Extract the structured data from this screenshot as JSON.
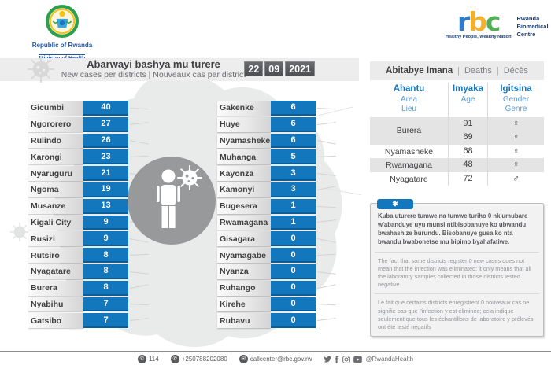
{
  "gov": {
    "country": "Republic of Rwanda",
    "ministry": "Ministry of Health"
  },
  "logo_rbc": {
    "r": "r",
    "b": "b",
    "c": "c",
    "name1": "Rwanda",
    "name2": "Biomedical",
    "name3": "Centre",
    "tagline": "Healthy People, Wealthy Nation"
  },
  "title_bar": {
    "title": "Abarwayi bashya mu turere",
    "subtitle": "New cases per districts  |  Nouveaux cas par district",
    "date_day": "22",
    "date_month": "09",
    "date_year": "2021"
  },
  "chart_data": {
    "type": "table",
    "title": "Abarwayi bashya mu turere — New cases per districts — Nouveaux cas par district",
    "date": "22/09/2021",
    "columns": {
      "left": [
        {
          "district": "Gicumbi",
          "cases": 40
        },
        {
          "district": "Ngororero",
          "cases": 27
        },
        {
          "district": "Rulindo",
          "cases": 26
        },
        {
          "district": "Karongi",
          "cases": 23
        },
        {
          "district": "Nyaruguru",
          "cases": 21
        },
        {
          "district": "Ngoma",
          "cases": 19
        },
        {
          "district": "Musanze",
          "cases": 13
        },
        {
          "district": "Kigali City",
          "cases": 9
        },
        {
          "district": "Rusizi",
          "cases": 9
        },
        {
          "district": "Rutsiro",
          "cases": 8
        },
        {
          "district": "Nyagatare",
          "cases": 8
        },
        {
          "district": "Burera",
          "cases": 8
        },
        {
          "district": "Nyabihu",
          "cases": 7
        },
        {
          "district": "Gatsibo",
          "cases": 7
        }
      ],
      "right": [
        {
          "district": "Gakenke",
          "cases": 6
        },
        {
          "district": "Huye",
          "cases": 6
        },
        {
          "district": "Nyamasheke",
          "cases": 6
        },
        {
          "district": "Muhanga",
          "cases": 5
        },
        {
          "district": "Kayonza",
          "cases": 3
        },
        {
          "district": "Kamonyi",
          "cases": 3
        },
        {
          "district": "Bugesera",
          "cases": 1
        },
        {
          "district": "Rwamagana",
          "cases": 1
        },
        {
          "district": "Gisagara",
          "cases": 0
        },
        {
          "district": "Nyamagabe",
          "cases": 0
        },
        {
          "district": "Nyanza",
          "cases": 0
        },
        {
          "district": "Ruhango",
          "cases": 0
        },
        {
          "district": "Kirehe",
          "cases": 0
        },
        {
          "district": "Rubavu",
          "cases": 0
        }
      ]
    },
    "deaths": [
      {
        "place": "Burera",
        "age": 91,
        "gender": "female"
      },
      {
        "place": "Burera",
        "age": 69,
        "gender": "female"
      },
      {
        "place": "Nyamasheke",
        "age": 68,
        "gender": "female"
      },
      {
        "place": "Rwamagana",
        "age": 48,
        "gender": "female"
      },
      {
        "place": "Nyagatare",
        "age": 72,
        "gender": "male"
      }
    ]
  },
  "deaths_panel": {
    "title_rw": "Abitabye Imana",
    "sep": "|",
    "title_en": "Deaths",
    "title_fr": "Décès",
    "col1": {
      "rw": "Ahantu",
      "en": "Area",
      "fr": "Lieu"
    },
    "col2": {
      "rw": "Imyaka",
      "en": "Age"
    },
    "col3": {
      "rw": "Igitsina",
      "en": "Gender",
      "fr": "Genre"
    },
    "rows": [
      {
        "place": "Burera",
        "shaded": true,
        "entries": [
          {
            "age": "91",
            "gender": "♀"
          },
          {
            "age": "69",
            "gender": "♀"
          }
        ]
      },
      {
        "place": "Nyamasheke",
        "shaded": false,
        "entries": [
          {
            "age": "68",
            "gender": "♀"
          }
        ]
      },
      {
        "place": "Rwamagana",
        "shaded": true,
        "entries": [
          {
            "age": "48",
            "gender": "♀"
          }
        ]
      },
      {
        "place": "Nyagatare",
        "shaded": false,
        "entries": [
          {
            "age": "72",
            "gender": "♂"
          }
        ]
      }
    ]
  },
  "note": {
    "symbol": "✱",
    "rw": "Kuba uturere tumwe na tumwe turiho 0 nk'umubare w'abanduye uyu munsi ntibisobanuye ko ubwandu bwahashize burundu. Bisobanuye gusa ko nta bwandu bwabonetse mu bipimo byahafatiwe.",
    "en": "The fact that some districts register 0 new cases does not mean that the infection was eliminated; it only means that all the laboratory samples collected in those districts tested negative.",
    "fr": "Le fait que certains districts enregistrent 0 nouveaux cas ne signifie pas que l'infection y est éliminée; cela indique seulement que tous les échantillons de laboratoire y prélevés ont été testé négatifs"
  },
  "footer": {
    "phone_short": "114",
    "phone_long": "+250788202080",
    "email": "callcenter@rbc.gov.rw",
    "handle": "@RwandaHealth"
  },
  "colors": {
    "accent_blue": "#1377bd",
    "date_gray": "#58595b",
    "bar_gray": "#ededee"
  }
}
